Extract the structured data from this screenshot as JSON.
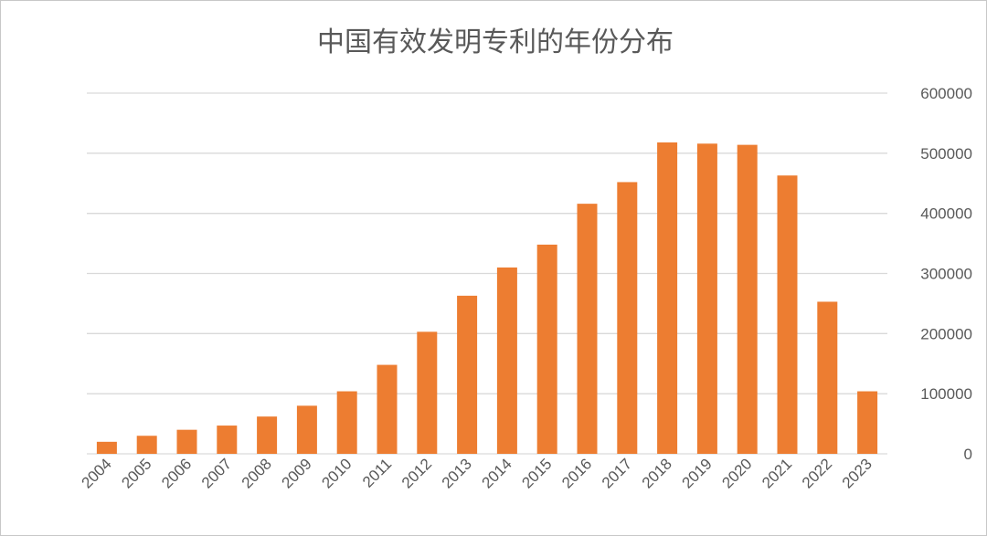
{
  "chart_data": {
    "type": "bar",
    "title": "中国有效发明专利的年份分布",
    "xlabel": "",
    "ylabel": "",
    "categories": [
      "2004",
      "2005",
      "2006",
      "2007",
      "2008",
      "2009",
      "2010",
      "2011",
      "2012",
      "2013",
      "2014",
      "2015",
      "2016",
      "2017",
      "2018",
      "2019",
      "2020",
      "2021",
      "2022",
      "2023"
    ],
    "series": [
      {
        "values": [
          20000,
          30000,
          40000,
          47000,
          62000,
          80000,
          104000,
          148000,
          203000,
          263000,
          310000,
          348000,
          416000,
          452000,
          518000,
          516000,
          514000,
          463000,
          253000,
          104000
        ]
      }
    ],
    "ylim": [
      0,
      600000
    ],
    "yticks": [
      "0",
      "100000",
      "200000",
      "300000",
      "400000",
      "500000",
      "600000"
    ],
    "y_axis_side": "right",
    "grid": true,
    "legend": "none",
    "bar_color": "#ed7d31",
    "grid_color": "#d9d9d9",
    "text_color": "#595959"
  }
}
